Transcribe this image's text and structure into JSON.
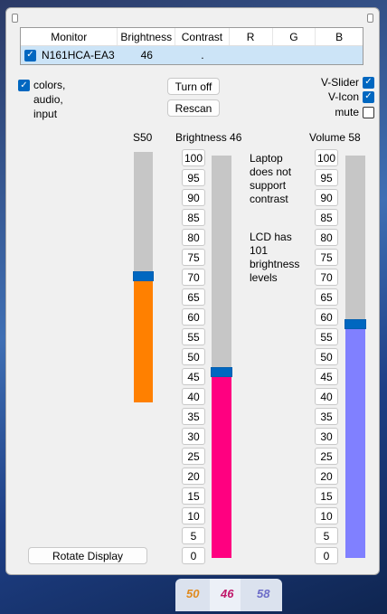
{
  "table": {
    "headers": [
      "Monitor",
      "Brightness",
      "Contrast",
      "R",
      "G",
      "B"
    ],
    "row": {
      "checked": true,
      "monitor": "N161HCA-EA3",
      "brightness": "46",
      "contrast": ".",
      "r": "",
      "g": "",
      "b": ""
    }
  },
  "options": {
    "colors_audio_input": {
      "checked": true,
      "label_lines": [
        "colors,",
        "audio,",
        "input"
      ]
    },
    "v_slider": {
      "checked": true,
      "label": "V-Slider"
    },
    "v_icon": {
      "checked": true,
      "label": "V-Icon"
    },
    "mute": {
      "checked": false,
      "label": "mute"
    }
  },
  "buttons": {
    "turn_off": "Turn off",
    "rescan": "Rescan",
    "rotate_display": "Rotate Display"
  },
  "sliders": {
    "s": {
      "label": "S50",
      "value": 50,
      "color": "#ff8000"
    },
    "brightness": {
      "label": "Brightness 46",
      "value": 46,
      "color": "#ff0080"
    },
    "volume": {
      "label": "Volume 58",
      "value": 58,
      "color": "#8080ff"
    }
  },
  "scale_ticks": [
    "100",
    "95",
    "90",
    "85",
    "80",
    "75",
    "70",
    "65",
    "60",
    "55",
    "50",
    "45",
    "40",
    "35",
    "30",
    "25",
    "20",
    "15",
    "10",
    "5",
    "0"
  ],
  "notes": {
    "contrast_lines": [
      "Laptop",
      "does not",
      "support",
      "contrast"
    ],
    "levels_lines": [
      "LCD has",
      "101",
      "brightness",
      "levels"
    ]
  },
  "tray": {
    "items": [
      {
        "text": "50",
        "color": "#e08a1e"
      },
      {
        "text": "46",
        "color": "#c0186a"
      },
      {
        "text": "58",
        "color": "#6c6cc8"
      }
    ]
  }
}
